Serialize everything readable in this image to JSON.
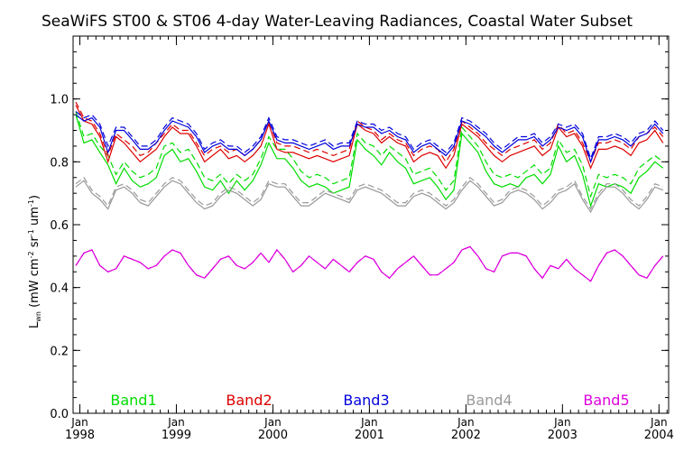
{
  "chart_data": {
    "type": "line",
    "title": "SeaWiFS ST00 & ST06 4-day Water-Leaving Radiances, Coastal Water Subset",
    "xlabel": "",
    "ylabel": {
      "prefix": "L",
      "sub": "wn",
      "units_open": " (mW cm",
      "exp1": "-2",
      "sr": " sr",
      "exp2": "-1",
      "um": " um",
      "exp3": "-1",
      "close": ")"
    },
    "xlim": [
      1997.93,
      2004.1
    ],
    "ylim": [
      0.0,
      1.2
    ],
    "ytick_values": [
      0.0,
      0.2,
      0.4,
      0.6,
      0.8,
      1.0
    ],
    "ytick_labels": [
      "0.0",
      "0.2",
      "0.4",
      "0.6",
      "0.8",
      "1.0"
    ],
    "xticks": [
      {
        "value": 1998,
        "top": "Jan",
        "bottom": "1998"
      },
      {
        "value": 1999,
        "top": "Jan",
        "bottom": "1999"
      },
      {
        "value": 2000,
        "top": "Jan",
        "bottom": "2000"
      },
      {
        "value": 2001,
        "top": "Jan",
        "bottom": "2001"
      },
      {
        "value": 2002,
        "top": "Jan",
        "bottom": "2002"
      },
      {
        "value": 2003,
        "top": "Jan",
        "bottom": "2003"
      },
      {
        "value": 2004,
        "top": "Jan",
        "bottom": "2004"
      }
    ],
    "legend_placement": "bottom inside plot, spread horizontally",
    "grid": false,
    "x": [
      1997.958,
      1998.042,
      1998.125,
      1998.208,
      1998.292,
      1998.375,
      1998.458,
      1998.542,
      1998.625,
      1998.708,
      1998.792,
      1998.875,
      1998.958,
      1999.042,
      1999.125,
      1999.208,
      1999.292,
      1999.375,
      1999.458,
      1999.542,
      1999.625,
      1999.708,
      1999.792,
      1999.875,
      1999.958,
      2000.042,
      2000.125,
      2000.208,
      2000.292,
      2000.375,
      2000.458,
      2000.542,
      2000.625,
      2000.708,
      2000.792,
      2000.875,
      2000.958,
      2001.042,
      2001.125,
      2001.208,
      2001.292,
      2001.375,
      2001.458,
      2001.542,
      2001.625,
      2001.708,
      2001.792,
      2001.875,
      2001.958,
      2002.042,
      2002.125,
      2002.208,
      2002.292,
      2002.375,
      2002.458,
      2002.542,
      2002.625,
      2002.708,
      2002.792,
      2002.875,
      2002.958,
      2003.042,
      2003.125,
      2003.208,
      2003.292,
      2003.375,
      2003.458,
      2003.542,
      2003.625,
      2003.708,
      2003.792,
      2003.875,
      2003.958,
      2004.042
    ],
    "series": [
      {
        "name": "Band1",
        "color": "#00dd00",
        "solid": [
          0.95,
          0.86,
          0.87,
          0.83,
          0.79,
          0.73,
          0.78,
          0.74,
          0.72,
          0.73,
          0.75,
          0.82,
          0.84,
          0.8,
          0.81,
          0.77,
          0.72,
          0.71,
          0.74,
          0.7,
          0.74,
          0.71,
          0.74,
          0.79,
          0.86,
          0.81,
          0.81,
          0.78,
          0.74,
          0.72,
          0.73,
          0.72,
          0.7,
          0.71,
          0.72,
          0.87,
          0.84,
          0.82,
          0.79,
          0.83,
          0.8,
          0.78,
          0.73,
          0.74,
          0.75,
          0.72,
          0.68,
          0.71,
          0.89,
          0.86,
          0.83,
          0.77,
          0.73,
          0.72,
          0.73,
          0.72,
          0.75,
          0.76,
          0.73,
          0.76,
          0.85,
          0.8,
          0.82,
          0.76,
          0.66,
          0.73,
          0.72,
          0.73,
          0.72,
          0.7,
          0.75,
          0.77,
          0.8,
          0.78
        ],
        "dashed": [
          0.96,
          0.88,
          0.89,
          0.85,
          0.82,
          0.76,
          0.8,
          0.77,
          0.75,
          0.76,
          0.78,
          0.85,
          0.86,
          0.83,
          0.84,
          0.8,
          0.75,
          0.74,
          0.76,
          0.73,
          0.76,
          0.74,
          0.76,
          0.81,
          0.88,
          0.84,
          0.84,
          0.81,
          0.77,
          0.75,
          0.76,
          0.75,
          0.73,
          0.74,
          0.75,
          0.89,
          0.86,
          0.85,
          0.82,
          0.85,
          0.83,
          0.81,
          0.76,
          0.77,
          0.78,
          0.75,
          0.71,
          0.74,
          0.91,
          0.88,
          0.85,
          0.8,
          0.76,
          0.75,
          0.76,
          0.75,
          0.77,
          0.79,
          0.76,
          0.78,
          0.87,
          0.83,
          0.84,
          0.79,
          0.69,
          0.76,
          0.75,
          0.76,
          0.75,
          0.73,
          0.78,
          0.8,
          0.82,
          0.8
        ]
      },
      {
        "name": "Band2",
        "color": "#dd0000",
        "solid": [
          0.98,
          0.93,
          0.92,
          0.88,
          0.8,
          0.88,
          0.86,
          0.83,
          0.8,
          0.82,
          0.84,
          0.88,
          0.91,
          0.89,
          0.89,
          0.85,
          0.8,
          0.82,
          0.84,
          0.81,
          0.82,
          0.8,
          0.82,
          0.85,
          0.92,
          0.84,
          0.83,
          0.83,
          0.82,
          0.81,
          0.82,
          0.81,
          0.8,
          0.81,
          0.82,
          0.92,
          0.9,
          0.89,
          0.86,
          0.88,
          0.86,
          0.85,
          0.8,
          0.82,
          0.83,
          0.82,
          0.78,
          0.82,
          0.92,
          0.9,
          0.88,
          0.85,
          0.82,
          0.8,
          0.82,
          0.83,
          0.84,
          0.85,
          0.82,
          0.84,
          0.91,
          0.88,
          0.89,
          0.85,
          0.78,
          0.84,
          0.84,
          0.85,
          0.84,
          0.82,
          0.86,
          0.87,
          0.9,
          0.86
        ],
        "dashed": [
          0.99,
          0.94,
          0.93,
          0.89,
          0.82,
          0.89,
          0.87,
          0.85,
          0.82,
          0.83,
          0.86,
          0.89,
          0.92,
          0.9,
          0.9,
          0.86,
          0.82,
          0.84,
          0.85,
          0.83,
          0.84,
          0.82,
          0.84,
          0.87,
          0.93,
          0.86,
          0.85,
          0.85,
          0.84,
          0.83,
          0.84,
          0.83,
          0.82,
          0.83,
          0.84,
          0.93,
          0.91,
          0.9,
          0.87,
          0.89,
          0.87,
          0.86,
          0.82,
          0.84,
          0.85,
          0.84,
          0.8,
          0.84,
          0.93,
          0.91,
          0.89,
          0.86,
          0.84,
          0.82,
          0.84,
          0.85,
          0.86,
          0.87,
          0.84,
          0.86,
          0.92,
          0.89,
          0.9,
          0.86,
          0.8,
          0.86,
          0.86,
          0.87,
          0.86,
          0.84,
          0.88,
          0.89,
          0.91,
          0.88
        ]
      },
      {
        "name": "Band3",
        "color": "#0000dd",
        "solid": [
          0.95,
          0.93,
          0.94,
          0.91,
          0.83,
          0.9,
          0.9,
          0.87,
          0.84,
          0.84,
          0.86,
          0.9,
          0.93,
          0.92,
          0.91,
          0.88,
          0.83,
          0.85,
          0.86,
          0.84,
          0.84,
          0.82,
          0.84,
          0.87,
          0.93,
          0.87,
          0.86,
          0.86,
          0.85,
          0.84,
          0.85,
          0.86,
          0.84,
          0.85,
          0.85,
          0.92,
          0.91,
          0.91,
          0.89,
          0.9,
          0.88,
          0.87,
          0.83,
          0.85,
          0.86,
          0.84,
          0.82,
          0.85,
          0.93,
          0.92,
          0.9,
          0.88,
          0.85,
          0.83,
          0.85,
          0.87,
          0.87,
          0.88,
          0.85,
          0.87,
          0.91,
          0.9,
          0.91,
          0.88,
          0.8,
          0.87,
          0.87,
          0.88,
          0.87,
          0.85,
          0.88,
          0.89,
          0.92,
          0.89
        ],
        "dashed": [
          0.96,
          0.94,
          0.95,
          0.92,
          0.85,
          0.91,
          0.91,
          0.88,
          0.85,
          0.85,
          0.87,
          0.91,
          0.94,
          0.93,
          0.92,
          0.89,
          0.84,
          0.86,
          0.87,
          0.85,
          0.85,
          0.83,
          0.85,
          0.88,
          0.94,
          0.88,
          0.87,
          0.87,
          0.86,
          0.85,
          0.86,
          0.87,
          0.85,
          0.86,
          0.86,
          0.93,
          0.92,
          0.92,
          0.9,
          0.91,
          0.89,
          0.88,
          0.84,
          0.86,
          0.87,
          0.85,
          0.83,
          0.86,
          0.94,
          0.93,
          0.91,
          0.89,
          0.86,
          0.84,
          0.86,
          0.88,
          0.88,
          0.89,
          0.86,
          0.88,
          0.92,
          0.91,
          0.92,
          0.89,
          0.81,
          0.88,
          0.88,
          0.89,
          0.88,
          0.86,
          0.89,
          0.9,
          0.93,
          0.9
        ]
      },
      {
        "name": "Band4",
        "color": "#999999",
        "solid": [
          0.72,
          0.74,
          0.7,
          0.68,
          0.65,
          0.71,
          0.72,
          0.7,
          0.67,
          0.66,
          0.69,
          0.72,
          0.74,
          0.73,
          0.7,
          0.67,
          0.65,
          0.66,
          0.69,
          0.71,
          0.7,
          0.68,
          0.66,
          0.68,
          0.73,
          0.72,
          0.72,
          0.69,
          0.66,
          0.66,
          0.68,
          0.7,
          0.69,
          0.68,
          0.67,
          0.71,
          0.72,
          0.71,
          0.7,
          0.68,
          0.66,
          0.66,
          0.69,
          0.7,
          0.69,
          0.67,
          0.65,
          0.67,
          0.71,
          0.74,
          0.72,
          0.69,
          0.66,
          0.67,
          0.7,
          0.71,
          0.7,
          0.68,
          0.65,
          0.67,
          0.7,
          0.71,
          0.73,
          0.68,
          0.64,
          0.69,
          0.72,
          0.72,
          0.7,
          0.67,
          0.65,
          0.68,
          0.72,
          0.71
        ],
        "dashed": [
          0.73,
          0.75,
          0.71,
          0.69,
          0.66,
          0.72,
          0.73,
          0.71,
          0.68,
          0.67,
          0.7,
          0.73,
          0.75,
          0.74,
          0.71,
          0.68,
          0.66,
          0.67,
          0.7,
          0.72,
          0.71,
          0.69,
          0.67,
          0.69,
          0.74,
          0.73,
          0.73,
          0.7,
          0.67,
          0.67,
          0.69,
          0.71,
          0.7,
          0.69,
          0.68,
          0.72,
          0.73,
          0.72,
          0.71,
          0.69,
          0.67,
          0.67,
          0.7,
          0.71,
          0.7,
          0.68,
          0.66,
          0.68,
          0.72,
          0.75,
          0.73,
          0.7,
          0.67,
          0.68,
          0.71,
          0.72,
          0.71,
          0.69,
          0.66,
          0.68,
          0.71,
          0.72,
          0.74,
          0.69,
          0.65,
          0.7,
          0.73,
          0.73,
          0.71,
          0.68,
          0.66,
          0.69,
          0.73,
          0.72
        ]
      },
      {
        "name": "Band5",
        "color": "#dd00dd",
        "solid": [
          0.47,
          0.51,
          0.52,
          0.47,
          0.45,
          0.46,
          0.5,
          0.49,
          0.48,
          0.46,
          0.47,
          0.5,
          0.52,
          0.51,
          0.47,
          0.44,
          0.43,
          0.46,
          0.49,
          0.5,
          0.47,
          0.46,
          0.48,
          0.51,
          0.48,
          0.52,
          0.49,
          0.45,
          0.47,
          0.5,
          0.48,
          0.46,
          0.49,
          0.47,
          0.45,
          0.48,
          0.5,
          0.49,
          0.45,
          0.43,
          0.46,
          0.48,
          0.5,
          0.47,
          0.44,
          0.44,
          0.46,
          0.48,
          0.52,
          0.53,
          0.5,
          0.46,
          0.45,
          0.5,
          0.51,
          0.51,
          0.5,
          0.46,
          0.43,
          0.47,
          0.46,
          0.49,
          0.46,
          0.44,
          0.42,
          0.47,
          0.51,
          0.52,
          0.5,
          0.47,
          0.44,
          0.43,
          0.47,
          0.5
        ],
        "dashed": [
          0.47,
          0.51,
          0.52,
          0.47,
          0.45,
          0.46,
          0.5,
          0.49,
          0.48,
          0.46,
          0.47,
          0.5,
          0.52,
          0.51,
          0.47,
          0.44,
          0.43,
          0.46,
          0.49,
          0.5,
          0.47,
          0.46,
          0.48,
          0.51,
          0.48,
          0.52,
          0.49,
          0.45,
          0.47,
          0.5,
          0.48,
          0.46,
          0.49,
          0.47,
          0.45,
          0.48,
          0.5,
          0.49,
          0.45,
          0.43,
          0.46,
          0.48,
          0.5,
          0.47,
          0.44,
          0.44,
          0.46,
          0.48,
          0.52,
          0.53,
          0.5,
          0.46,
          0.45,
          0.5,
          0.51,
          0.51,
          0.5,
          0.46,
          0.43,
          0.47,
          0.46,
          0.49,
          0.46,
          0.44,
          0.42,
          0.47,
          0.51,
          0.52,
          0.5,
          0.47,
          0.44,
          0.43,
          0.47,
          0.5
        ]
      }
    ]
  }
}
